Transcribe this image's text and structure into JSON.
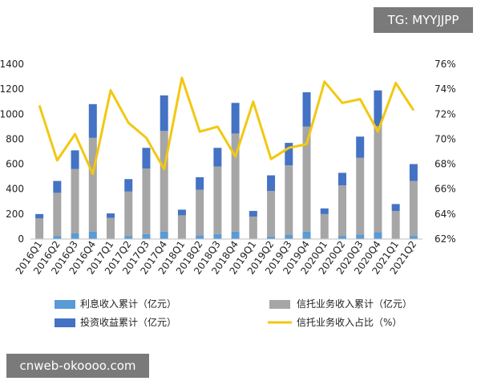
{
  "watermarks": {
    "top": "TG: MYYJJPP",
    "bottom": "cnweb-okoooo.com"
  },
  "chart_data": {
    "type": "bar",
    "stacked": true,
    "secondary_type": "line",
    "categories": [
      "2016Q1",
      "2016Q2",
      "2016Q3",
      "2016Q4",
      "2017Q1",
      "2017Q2",
      "2017Q3",
      "2017Q4",
      "2018Q1",
      "2018Q2",
      "2018Q3",
      "2018Q4",
      "2019Q1",
      "2019Q2",
      "2019Q3",
      "2019Q4",
      "2020Q1",
      "2020Q2",
      "2020Q3",
      "2020Q4",
      "2021Q1",
      "2021Q2"
    ],
    "series": [
      {
        "name": "利息收入累计（亿元）",
        "axis": "left",
        "color": "#5b9bd5",
        "values": [
          5,
          25,
          45,
          60,
          5,
          25,
          40,
          60,
          5,
          30,
          40,
          60,
          5,
          20,
          35,
          60,
          5,
          25,
          35,
          55,
          5,
          25
        ]
      },
      {
        "name": "信托业务收入累计（亿元）",
        "axis": "left",
        "color": "#a6a6a6",
        "values": [
          160,
          345,
          515,
          750,
          165,
          355,
          525,
          805,
          185,
          365,
          540,
          785,
          175,
          365,
          555,
          840,
          195,
          405,
          615,
          850,
          220,
          440
        ]
      },
      {
        "name": "投资收益累计（亿元）",
        "axis": "left",
        "color": "#4472c4",
        "values": [
          35,
          95,
          150,
          270,
          35,
          100,
          165,
          285,
          45,
          100,
          150,
          245,
          45,
          125,
          180,
          275,
          45,
          100,
          170,
          285,
          55,
          135
        ]
      },
      {
        "name": "信托业务收入占比（%）",
        "axis": "right",
        "color": "#f2c811",
        "type": "line",
        "values": [
          72.7,
          68.3,
          70.4,
          67.2,
          73.9,
          71.3,
          70.1,
          67.6,
          74.9,
          70.6,
          71.0,
          68.6,
          73.0,
          68.4,
          69.3,
          69.6,
          74.6,
          72.9,
          73.2,
          70.6,
          74.5,
          72.3
        ]
      }
    ],
    "y_left": {
      "min": 0,
      "max": 1400,
      "ticks": [
        "0",
        "200",
        "400",
        "600",
        "800",
        "1000",
        "1200",
        "1400"
      ]
    },
    "y_right": {
      "min": 62,
      "max": 76,
      "ticks": [
        "62%",
        "64%",
        "66%",
        "68%",
        "70%",
        "72%",
        "74%",
        "76%"
      ]
    },
    "grid": false,
    "legend_position": "bottom"
  }
}
